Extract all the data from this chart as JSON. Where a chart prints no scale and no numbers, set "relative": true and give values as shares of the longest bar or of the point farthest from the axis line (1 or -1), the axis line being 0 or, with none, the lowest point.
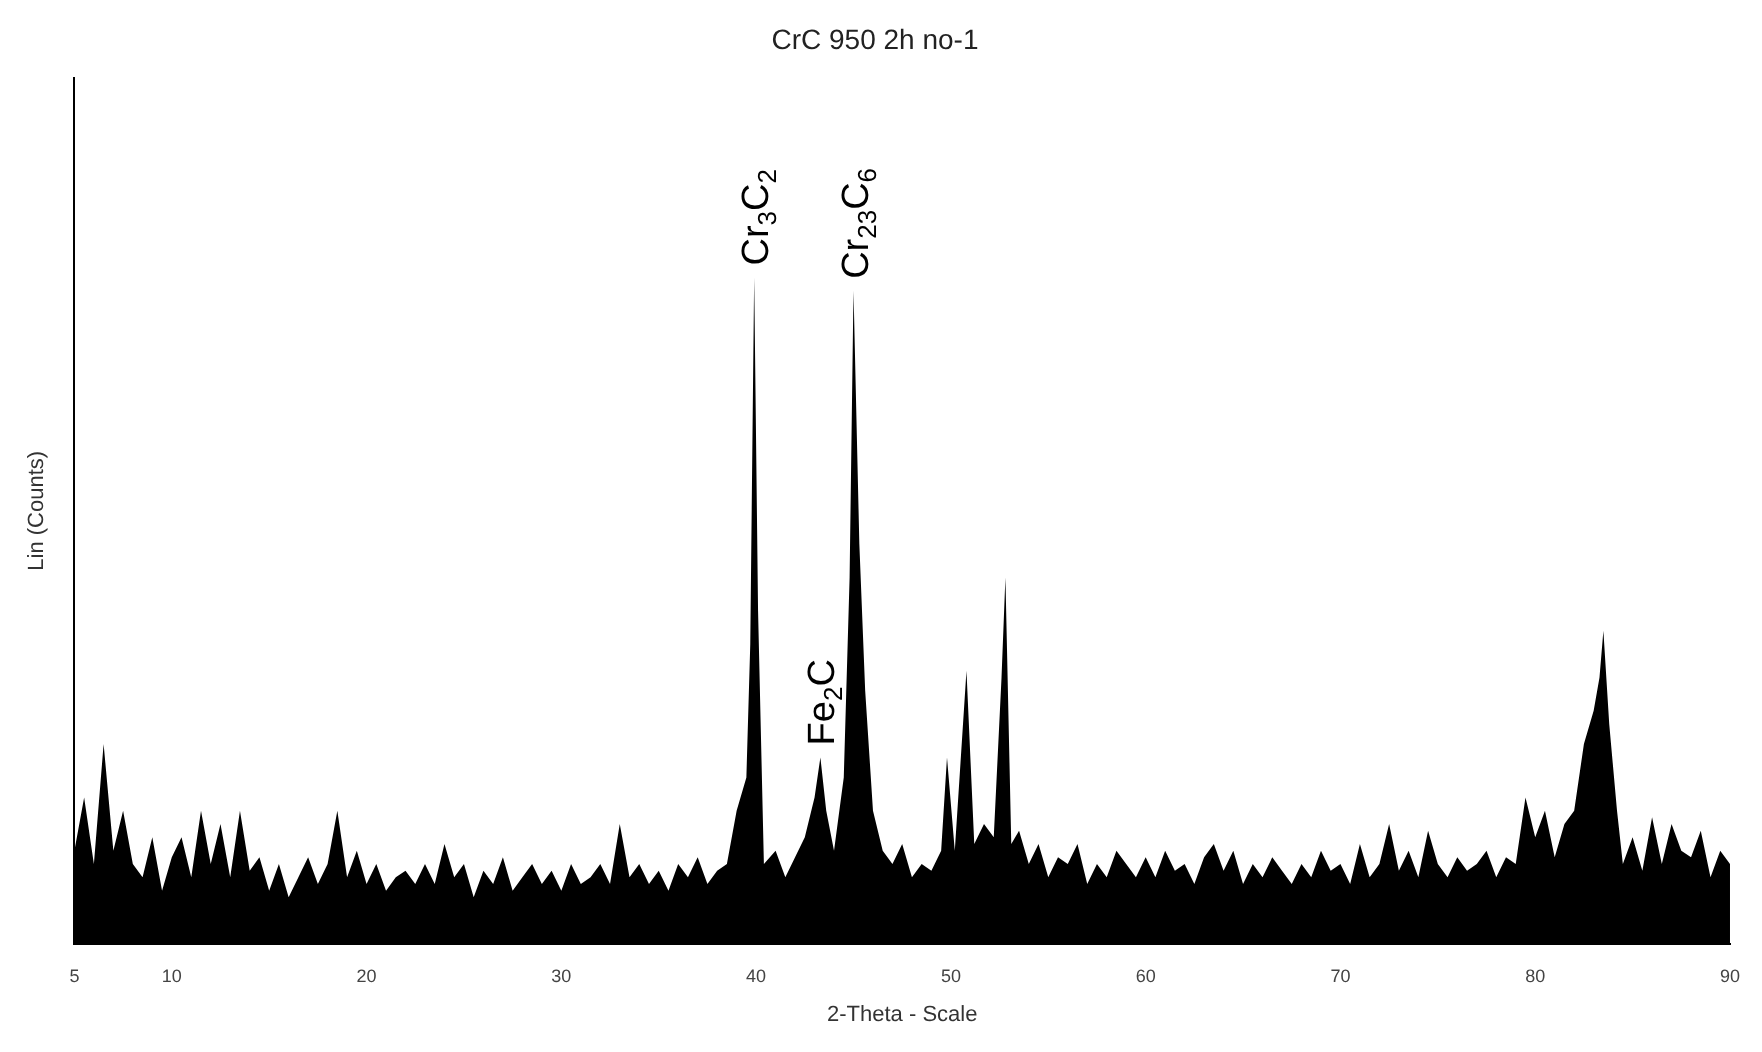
{
  "chart_data": {
    "type": "area",
    "title": "CrC 950 2h no-1",
    "xlabel": "2-Theta - Scale",
    "ylabel": "Lin (Counts)",
    "relative": true,
    "grid": false,
    "legend": false,
    "marker": "none",
    "xlim": [
      5,
      90
    ],
    "xticks": [
      5,
      10,
      20,
      30,
      40,
      50,
      60,
      70,
      80,
      90
    ],
    "x": [
      5,
      5.5,
      6,
      6.5,
      7,
      7.5,
      8,
      8.5,
      9,
      9.5,
      10,
      10.5,
      11,
      11.5,
      12,
      12.5,
      13,
      13.5,
      14,
      14.5,
      15,
      15.5,
      16,
      16.5,
      17,
      17.5,
      18,
      18.5,
      19,
      19.5,
      20,
      20.5,
      21,
      21.5,
      22,
      22.5,
      23,
      23.5,
      24,
      24.5,
      25,
      25.5,
      26,
      26.5,
      27,
      27.5,
      28,
      28.5,
      29,
      29.5,
      30,
      30.5,
      31,
      31.5,
      32,
      32.5,
      33,
      33.5,
      34,
      34.5,
      35,
      35.5,
      36,
      36.5,
      37,
      37.5,
      38,
      38.5,
      39,
      39.5,
      39.7,
      39.9,
      40.1,
      40.4,
      41,
      41.5,
      42,
      42.5,
      43,
      43.3,
      43.6,
      44,
      44.5,
      44.8,
      45,
      45.3,
      45.6,
      46,
      46.5,
      47,
      47.5,
      48,
      48.5,
      49,
      49.5,
      49.8,
      50.2,
      50.8,
      51.2,
      51.7,
      52.2,
      52.6,
      52.8,
      53.1,
      53.5,
      54,
      54.5,
      55,
      55.5,
      56,
      56.5,
      57,
      57.5,
      58,
      58.5,
      59,
      59.5,
      60,
      60.5,
      61,
      61.5,
      62,
      62.5,
      63,
      63.5,
      64,
      64.5,
      65,
      65.5,
      66,
      66.5,
      67,
      67.5,
      68,
      68.5,
      69,
      69.5,
      70,
      70.5,
      71,
      71.5,
      72,
      72.5,
      73,
      73.5,
      74,
      74.5,
      75,
      75.5,
      76,
      76.5,
      77,
      77.5,
      78,
      78.5,
      79,
      79.5,
      80,
      80.5,
      81,
      81.5,
      82,
      82.5,
      83,
      83.3,
      83.5,
      83.8,
      84.2,
      84.5,
      85,
      85.5,
      86,
      86.5,
      87,
      87.5,
      88,
      88.5,
      89,
      89.5,
      90
    ],
    "series": [
      {
        "color": "#000000",
        "values": [
          0.14,
          0.22,
          0.12,
          0.3,
          0.14,
          0.2,
          0.12,
          0.1,
          0.16,
          0.08,
          0.13,
          0.16,
          0.1,
          0.2,
          0.12,
          0.18,
          0.1,
          0.2,
          0.11,
          0.13,
          0.08,
          0.12,
          0.07,
          0.1,
          0.13,
          0.09,
          0.12,
          0.2,
          0.1,
          0.14,
          0.09,
          0.12,
          0.08,
          0.1,
          0.11,
          0.09,
          0.12,
          0.09,
          0.15,
          0.1,
          0.12,
          0.07,
          0.11,
          0.09,
          0.13,
          0.08,
          0.1,
          0.12,
          0.09,
          0.11,
          0.08,
          0.12,
          0.09,
          0.1,
          0.12,
          0.09,
          0.18,
          0.1,
          0.12,
          0.09,
          0.11,
          0.08,
          0.12,
          0.1,
          0.13,
          0.09,
          0.11,
          0.12,
          0.2,
          0.25,
          0.45,
          1,
          0.5,
          0.12,
          0.14,
          0.1,
          0.13,
          0.16,
          0.22,
          0.28,
          0.2,
          0.14,
          0.25,
          0.55,
          0.98,
          0.6,
          0.38,
          0.2,
          0.14,
          0.12,
          0.15,
          0.1,
          0.12,
          0.11,
          0.14,
          0.28,
          0.14,
          0.41,
          0.15,
          0.18,
          0.16,
          0.4,
          0.55,
          0.15,
          0.17,
          0.12,
          0.15,
          0.1,
          0.13,
          0.12,
          0.15,
          0.09,
          0.12,
          0.1,
          0.14,
          0.12,
          0.1,
          0.13,
          0.1,
          0.14,
          0.11,
          0.12,
          0.09,
          0.13,
          0.15,
          0.11,
          0.14,
          0.09,
          0.12,
          0.1,
          0.13,
          0.11,
          0.09,
          0.12,
          0.1,
          0.14,
          0.11,
          0.12,
          0.09,
          0.15,
          0.1,
          0.12,
          0.18,
          0.11,
          0.14,
          0.1,
          0.17,
          0.12,
          0.1,
          0.13,
          0.11,
          0.12,
          0.14,
          0.1,
          0.13,
          0.12,
          0.22,
          0.16,
          0.2,
          0.13,
          0.18,
          0.2,
          0.3,
          0.35,
          0.4,
          0.47,
          0.33,
          0.2,
          0.12,
          0.16,
          0.11,
          0.19,
          0.12,
          0.18,
          0.14,
          0.13,
          0.17,
          0.1,
          0.14,
          0.12
        ]
      }
    ],
    "annotations": [
      {
        "text": "Cr$_{3}$C$_{2}$",
        "x": 39.9,
        "y": 1
      },
      {
        "text": "Cr$_{23}$C$_{6}$",
        "x": 45,
        "y": 0.98
      },
      {
        "text": "Fe$_{2}$C",
        "x": 43.3,
        "y": 0.28
      }
    ]
  }
}
